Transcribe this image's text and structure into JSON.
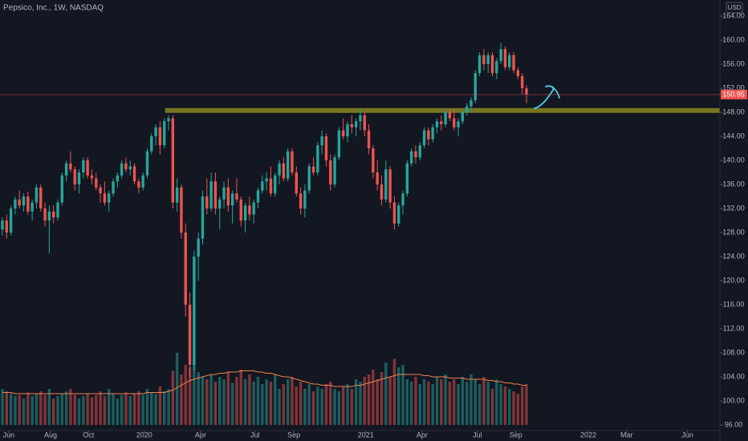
{
  "chart_data": {
    "type": "candlestick",
    "title": "Pepsico, Inc., 1W, NASDAQ",
    "currency": "USD",
    "up_color": "#26a69a",
    "down_color": "#ef5350",
    "volume_ma_color": "#f0824a",
    "x": [
      0,
      1,
      2,
      3,
      4,
      5,
      6,
      7,
      8,
      9,
      10,
      11,
      12,
      13,
      14,
      15,
      16,
      17,
      18,
      19,
      20,
      21,
      22,
      23,
      24,
      25,
      26,
      27,
      28,
      29,
      30,
      31,
      32,
      33,
      34,
      35,
      36,
      37,
      38,
      39,
      40,
      41,
      42,
      43,
      44,
      45,
      46,
      47,
      48,
      49,
      50,
      51,
      52,
      53,
      54,
      55,
      56,
      57,
      58,
      59,
      60,
      61,
      62,
      63,
      64,
      65,
      66,
      67,
      68,
      69,
      70,
      71,
      72,
      73,
      74,
      75,
      76,
      77,
      78,
      79,
      80,
      81,
      82,
      83,
      84,
      85,
      86,
      87,
      88,
      89,
      90,
      91,
      92,
      93,
      94,
      95,
      96,
      97,
      98,
      99,
      100,
      101,
      102,
      103,
      104,
      105,
      106,
      107,
      108,
      109,
      110,
      111,
      112,
      113,
      114,
      115,
      116,
      117,
      118,
      119,
      120,
      121,
      122,
      123
    ],
    "open": [
      128.5,
      130,
      128,
      132,
      133.5,
      132.5,
      134,
      131.5,
      133,
      135.5,
      132,
      130,
      131.5,
      130.5,
      133,
      137.5,
      139.5,
      138.5,
      136,
      138,
      140,
      137.5,
      137,
      135.5,
      134.5,
      133,
      134.5,
      136.5,
      137.5,
      139.5,
      138.5,
      139,
      136.5,
      135.5,
      137.5,
      141.5,
      144,
      145.5,
      142.5,
      146.5,
      147,
      133,
      135.5,
      128,
      116,
      106,
      124,
      127,
      134,
      132,
      136.5,
      132,
      133.5,
      135.5,
      132.5,
      134.5,
      133.5,
      130,
      132.5,
      131,
      133,
      135,
      136.5,
      137,
      134.5,
      137.5,
      139.5,
      137,
      141.5,
      138,
      134.5,
      132,
      135,
      139,
      138,
      142.5,
      144,
      140,
      136,
      140.5,
      145,
      144,
      146,
      145.5,
      146.5,
      147.5,
      145,
      142,
      138,
      136,
      133.5,
      138.5,
      133,
      129.5,
      132.5,
      134.5,
      139.5,
      141.5,
      140.5,
      142.5,
      145,
      143.5,
      145.5,
      146.5,
      146,
      148,
      147,
      145.5,
      146.5,
      148,
      149,
      150,
      154.5,
      157.5,
      156,
      157.5,
      154.5,
      156.5,
      158.5,
      155.5,
      157.5,
      155,
      154,
      152
    ],
    "high": [
      130.5,
      131,
      132.5,
      134,
      135,
      134.5,
      134.8,
      133.5,
      136,
      136,
      133,
      132.5,
      132.5,
      133.5,
      138,
      140,
      141.5,
      139,
      138.5,
      140.5,
      140.5,
      138.5,
      138,
      136,
      136.5,
      135,
      137,
      138,
      140,
      140.5,
      140,
      139.5,
      137,
      138,
      142,
      144.5,
      146,
      146.5,
      147,
      147.5,
      147.5,
      137,
      136,
      129.5,
      118,
      125,
      128,
      135,
      137,
      138,
      138,
      134,
      136.5,
      137,
      135,
      137,
      134,
      133,
      134,
      133.5,
      135.5,
      137.5,
      138,
      139,
      138,
      140,
      140.5,
      142,
      142,
      139,
      135.5,
      136,
      139.5,
      140.5,
      143,
      145,
      144.5,
      141,
      141,
      145.5,
      147,
      146.5,
      147.5,
      147,
      148.5,
      148,
      146,
      142.5,
      140,
      137.5,
      140,
      139,
      134,
      133,
      135,
      140,
      142,
      142.5,
      143,
      145.5,
      145.5,
      146,
      147,
      147.5,
      148.5,
      148.5,
      148.5,
      147,
      148.5,
      149.5,
      150.5,
      155,
      158,
      158.5,
      158,
      158,
      157,
      159.5,
      159,
      158,
      158,
      155.5,
      154.5,
      152.5
    ],
    "low": [
      127.5,
      127,
      127.5,
      131,
      132,
      131.5,
      131,
      130,
      132,
      131.5,
      129,
      124.5,
      129.5,
      130,
      132.5,
      136.5,
      138,
      135,
      134.5,
      137,
      137,
      136,
      135,
      133,
      132.5,
      131.5,
      134,
      135.5,
      137,
      138,
      137.5,
      136,
      134.5,
      135,
      137,
      141,
      142.5,
      141,
      142,
      145,
      132,
      131.5,
      127,
      114,
      104,
      105,
      120,
      126,
      131,
      131.5,
      131,
      128.5,
      132,
      131.5,
      129.5,
      133,
      129,
      128,
      130,
      129.5,
      132,
      134.5,
      135,
      134,
      134,
      136,
      136.5,
      136.5,
      137.5,
      134,
      131,
      130.5,
      134.5,
      137.5,
      137.5,
      141,
      139,
      135,
      135.5,
      140,
      143.5,
      143,
      144.5,
      144,
      145,
      144,
      141,
      137,
      135,
      132.5,
      133,
      132,
      128.5,
      129,
      131,
      134,
      139,
      139.5,
      140,
      142,
      142.5,
      143,
      144.5,
      145,
      145.5,
      146.5,
      145,
      144,
      146,
      147.5,
      148,
      149.5,
      154,
      155,
      154.5,
      154,
      153.5,
      156,
      155,
      155,
      154.5,
      153.5,
      151,
      149.5
    ],
    "close": [
      130,
      128,
      132,
      133.5,
      132.5,
      134,
      131.5,
      133,
      135.5,
      132,
      130,
      131.5,
      130.5,
      133,
      137.5,
      139.5,
      138.5,
      136,
      138,
      140,
      137.5,
      137,
      135.5,
      134.5,
      133,
      134.5,
      136.5,
      137.5,
      139.5,
      138.5,
      139,
      136.5,
      135.5,
      137.5,
      141.5,
      144,
      145.5,
      142.5,
      146.5,
      147,
      133,
      135.5,
      128,
      116,
      106,
      124,
      127,
      134,
      132,
      136.5,
      132,
      133.5,
      135.5,
      132.5,
      134.5,
      133.5,
      130,
      132.5,
      131,
      133,
      135,
      136.5,
      137,
      134.5,
      137.5,
      139.5,
      137,
      141.5,
      138,
      134.5,
      132,
      135,
      139,
      138,
      142.5,
      144,
      140,
      136,
      140.5,
      145,
      144,
      146,
      145.5,
      146.5,
      147.5,
      145,
      142,
      138,
      136,
      133.5,
      138.5,
      133,
      129.5,
      132.5,
      134.5,
      139.5,
      141.5,
      140.5,
      142.5,
      145,
      143.5,
      145.5,
      146.5,
      146,
      148,
      147,
      145.5,
      146.5,
      148,
      149,
      150,
      154.5,
      157.5,
      156,
      157.5,
      154.5,
      156.5,
      158.5,
      155.5,
      157.5,
      155,
      154,
      152,
      150.95
    ],
    "volume": [
      30,
      28,
      26,
      24,
      25,
      22,
      27,
      24,
      26,
      28,
      25,
      30,
      22,
      24,
      26,
      28,
      30,
      25,
      22,
      24,
      26,
      23,
      25,
      28,
      24,
      30,
      26,
      22,
      25,
      27,
      24,
      26,
      28,
      25,
      30,
      27,
      26,
      32,
      28,
      30,
      45,
      60,
      42,
      50,
      48,
      52,
      44,
      40,
      38,
      42,
      36,
      40,
      38,
      44,
      35,
      40,
      46,
      38,
      42,
      36,
      40,
      34,
      38,
      36,
      42,
      30,
      34,
      38,
      40,
      32,
      36,
      30,
      34,
      28,
      32,
      30,
      34,
      36,
      30,
      28,
      32,
      34,
      30,
      38,
      36,
      40,
      42,
      46,
      38,
      44,
      52,
      40,
      55,
      48,
      50,
      38,
      36,
      40,
      34,
      38,
      36,
      34,
      40,
      38,
      42,
      36,
      38,
      34,
      40,
      36,
      42,
      38,
      34,
      40,
      36,
      30,
      38,
      34,
      32,
      30,
      28,
      26,
      32,
      34
    ],
    "volume_ma": [
      27,
      27,
      27,
      26,
      26,
      26,
      26,
      26,
      26,
      26,
      26,
      26,
      26,
      26,
      26,
      26,
      26,
      26,
      26,
      26,
      26,
      26,
      26,
      26,
      26,
      26,
      26,
      26,
      26,
      26,
      26,
      26,
      26,
      26,
      27,
      27,
      27,
      27,
      27,
      28,
      29,
      31,
      33,
      35,
      37,
      38,
      39,
      40,
      41,
      42,
      42,
      43,
      43,
      44,
      44,
      44,
      45,
      45,
      45,
      45,
      44,
      44,
      43,
      43,
      42,
      41,
      40,
      40,
      39,
      38,
      37,
      36,
      35,
      34,
      34,
      33,
      33,
      33,
      32,
      32,
      32,
      32,
      32,
      33,
      33,
      34,
      35,
      36,
      37,
      38,
      39,
      40,
      41,
      42,
      42,
      42,
      42,
      42,
      42,
      41,
      41,
      40,
      40,
      40,
      40,
      39,
      39,
      39,
      39,
      38,
      38,
      38,
      38,
      38,
      37,
      37,
      36,
      36,
      35,
      35,
      34,
      34,
      33,
      33
    ],
    "zones": [
      {
        "from": 147.9,
        "to": 148.7,
        "start": 38.2,
        "color": "#8a861e"
      }
    ],
    "xlim": [
      -0.56,
      168.4
    ],
    "xticks": [
      {
        "value": 1.5,
        "label": "Jun"
      },
      {
        "value": 11.3,
        "label": "Aug"
      },
      {
        "value": 20.2,
        "label": "Oct"
      },
      {
        "value": 33.3,
        "label": "2020"
      },
      {
        "value": 46.5,
        "label": "Apr"
      },
      {
        "value": 59.3,
        "label": "Jul"
      },
      {
        "value": 68.4,
        "label": "Sep"
      },
      {
        "value": 85.3,
        "label": "2021"
      },
      {
        "value": 98.5,
        "label": "Apr"
      },
      {
        "value": 111.5,
        "label": "Jul"
      },
      {
        "value": 120.5,
        "label": "Sep"
      },
      {
        "value": 137.5,
        "label": "2022"
      },
      {
        "value": 146.5,
        "label": "Mar"
      },
      {
        "value": 160.8,
        "label": "Jun"
      }
    ],
    "ylim": [
      95.07,
      166.67
    ],
    "yticks": [
      {
        "value": 96,
        "label": "96.00"
      },
      {
        "value": 100,
        "label": "100.00"
      },
      {
        "value": 104,
        "label": "104.00"
      },
      {
        "value": 108,
        "label": "108.00"
      },
      {
        "value": 112,
        "label": "112.00"
      },
      {
        "value": 116,
        "label": "116.00"
      },
      {
        "value": 120,
        "label": "120.00"
      },
      {
        "value": 124,
        "label": "124.00"
      },
      {
        "value": 128,
        "label": "128.00"
      },
      {
        "value": 132,
        "label": "132.00"
      },
      {
        "value": 136,
        "label": "136.00"
      },
      {
        "value": 140,
        "label": "140.00"
      },
      {
        "value": 144,
        "label": "144.00"
      },
      {
        "value": 148,
        "label": "148.00"
      },
      {
        "value": 152,
        "label": "152.00"
      },
      {
        "value": 156,
        "label": "156.00"
      },
      {
        "value": 160,
        "label": "160.00"
      },
      {
        "value": 164,
        "label": "164.00"
      }
    ],
    "grid": false
  }
}
